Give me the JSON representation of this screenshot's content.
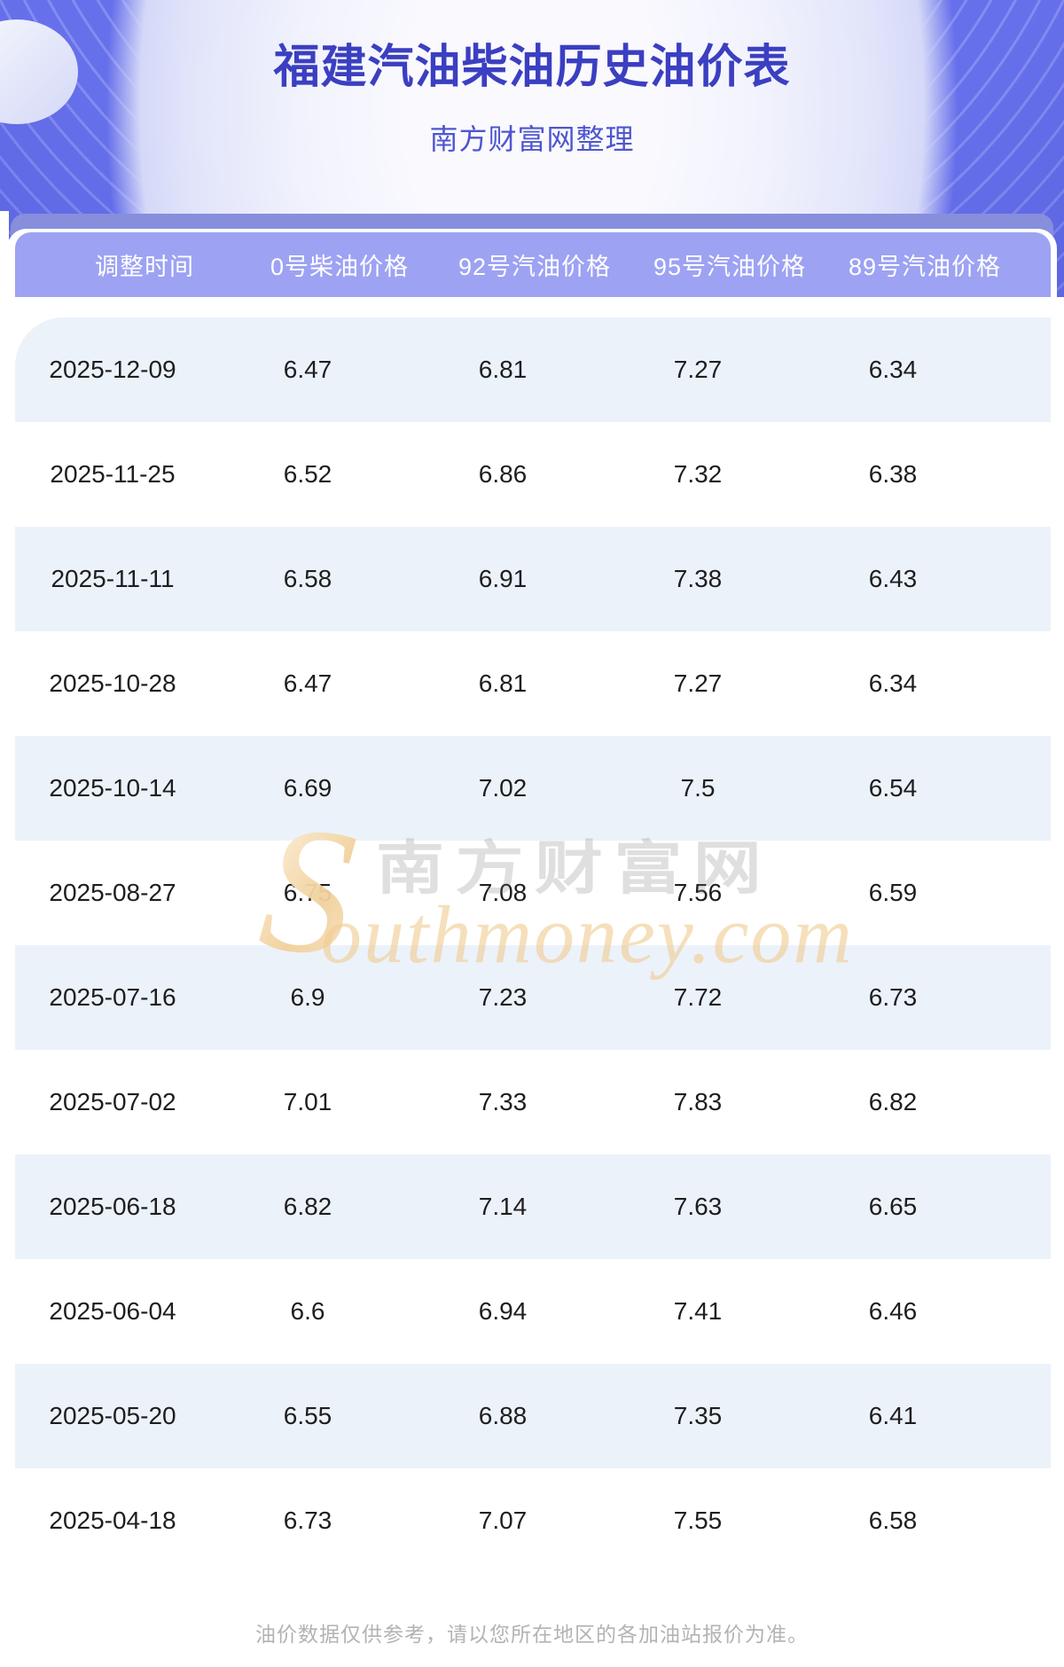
{
  "header": {
    "title": "福建汽油柴油历史油价表",
    "subtitle": "南方财富网整理"
  },
  "table": {
    "columns": [
      "调整时间",
      "0号柴油价格",
      "92号汽油价格",
      "95号汽油价格",
      "89号汽油价格"
    ],
    "rows": [
      [
        "2025-12-09",
        "6.47",
        "6.81",
        "7.27",
        "6.34"
      ],
      [
        "2025-11-25",
        "6.52",
        "6.86",
        "7.32",
        "6.38"
      ],
      [
        "2025-11-11",
        "6.58",
        "6.91",
        "7.38",
        "6.43"
      ],
      [
        "2025-10-28",
        "6.47",
        "6.81",
        "7.27",
        "6.34"
      ],
      [
        "2025-10-14",
        "6.69",
        "7.02",
        "7.5",
        "6.54"
      ],
      [
        "2025-08-27",
        "6.75",
        "7.08",
        "7.56",
        "6.59"
      ],
      [
        "2025-07-16",
        "6.9",
        "7.23",
        "7.72",
        "6.73"
      ],
      [
        "2025-07-02",
        "7.01",
        "7.33",
        "7.83",
        "6.82"
      ],
      [
        "2025-06-18",
        "6.82",
        "7.14",
        "7.63",
        "6.65"
      ],
      [
        "2025-06-04",
        "6.6",
        "6.94",
        "7.41",
        "6.46"
      ],
      [
        "2025-05-20",
        "6.55",
        "6.88",
        "7.35",
        "6.41"
      ],
      [
        "2025-04-18",
        "6.73",
        "7.07",
        "7.55",
        "6.58"
      ]
    ]
  },
  "watermark": {
    "initial": "S",
    "site_name": "南方财富网",
    "domain": "outhmoney.com"
  },
  "footer": {
    "note": "油价数据仅供参考，请以您所在地区的各加油站报价为准。"
  },
  "colors": {
    "banner_purple": "#6b74ec",
    "accent_bar": "#878edc",
    "table_header_bg": "#9da2f3",
    "row_highlight": "#ecf2fa",
    "title_color": "#3b3fc1",
    "subtitle_color": "#4e56cf",
    "cell_text": "#1e1e1e",
    "footer_text": "#b3b3b3",
    "watermark_orange": "#f2ce98",
    "watermark_gray": "#787878"
  }
}
